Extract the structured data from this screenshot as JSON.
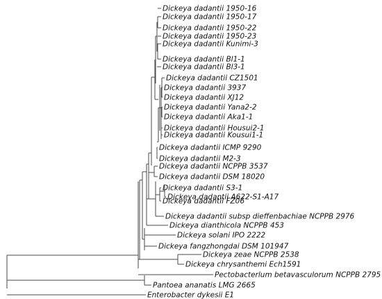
{
  "taxa": [
    "Dickeya dadantii 1950-16",
    "Dickeya dadantii 1950-17",
    "Dickeya dadantii 1950-22",
    "Dickeya dadantii 1950-23",
    "Dickeya dadantii Kunimi-3",
    "Dickeya dadantii Bl1-1",
    "Dickeya dadantii Bl3-1",
    "Dickeya dadantii CZ1501",
    "Dickeya dadantii 3937",
    "Dickeya dadantii XJ12",
    "Dickeya dadantii Yana2-2",
    "Dickeya dadantii Aka1-1",
    "Dickeya dadantii Housui2-1",
    "Dickeya dadantii Kousui1-1",
    "Dickeya dadantii ICMP 9290",
    "Dickeya dadantii M2-3",
    "Dickeya dadantii NCPPB 3537",
    "Dickeya dadantii DSM 18020",
    "Dickeya dadantii S3-1",
    "Dickeya dadantii A622-S1-A17",
    "Dickeya dadantii FZ06",
    "Dickeya dadantii subsp  dieffenbachiae NCPPB 2976",
    "Dickeya dianthicola NCPPB 453",
    "Dickeya solani IPO 2222",
    "Dickeya fangzhongdai DSM 101947",
    "Dickeya zeae NCPPB 2538",
    "Dickeya chrysanthemi Ech1591",
    "Pectobacterlum betavasculorum NCPPB 2795",
    "Pantoea ananatis LMG 2665",
    "Enterobacter dykesii E1"
  ]
}
